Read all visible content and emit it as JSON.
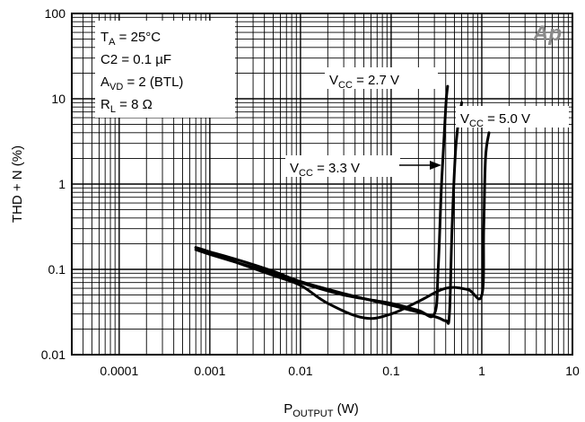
{
  "chart_data": {
    "type": "line",
    "xscale": "log",
    "yscale": "log",
    "xlim": [
      3e-05,
      10
    ],
    "ylim": [
      0.01,
      100
    ],
    "grid": true,
    "xlabel": {
      "main": "P",
      "sub": "OUTPUT",
      "unit": " (W)"
    },
    "ylabel": "THD + N (%)",
    "x_ticks": [
      "0.0001",
      "0.001",
      "0.01",
      "0.1",
      "1",
      "10"
    ],
    "y_ticks": [
      "0.01",
      "0.1",
      "1",
      "10",
      "100"
    ],
    "conditions": [
      {
        "main": "T",
        "sub": "A",
        "rest": " = 25°C"
      },
      {
        "main": "C2 = 0.1 µF",
        "sub": "",
        "rest": ""
      },
      {
        "main": "A",
        "sub": "VD",
        "rest": " = 2 (BTL)"
      },
      {
        "main": "R",
        "sub": "L",
        "rest": " = 8 Ω"
      }
    ],
    "series": [
      {
        "name": {
          "main": "V",
          "sub": "CC",
          "rest": " = 2.7 V"
        },
        "x": [
          0.0007,
          0.001,
          0.002,
          0.005,
          0.01,
          0.03,
          0.1,
          0.2,
          0.3,
          0.33,
          0.36,
          0.4,
          0.42
        ],
        "y": [
          0.17,
          0.15,
          0.12,
          0.09,
          0.07,
          0.05,
          0.04,
          0.033,
          0.03,
          0.1,
          1,
          8,
          14
        ]
      },
      {
        "name": {
          "main": "V",
          "sub": "CC",
          "rest": " = 3.3 V"
        },
        "x": [
          0.0007,
          0.001,
          0.002,
          0.005,
          0.01,
          0.03,
          0.1,
          0.3,
          0.4,
          0.44,
          0.47,
          0.52,
          0.6
        ],
        "y": [
          0.18,
          0.16,
          0.13,
          0.095,
          0.072,
          0.052,
          0.038,
          0.028,
          0.025,
          0.03,
          0.3,
          3,
          9
        ]
      },
      {
        "name": {
          "main": "V",
          "sub": "CC",
          "rest": " = 5.0 V"
        },
        "x": [
          0.0007,
          0.001,
          0.002,
          0.005,
          0.01,
          0.02,
          0.05,
          0.1,
          0.2,
          0.4,
          0.7,
          1.0,
          1.05,
          1.1,
          1.2
        ],
        "y": [
          0.18,
          0.16,
          0.12,
          0.085,
          0.065,
          0.04,
          0.027,
          0.03,
          0.042,
          0.06,
          0.058,
          0.05,
          0.3,
          2,
          4
        ]
      }
    ],
    "logo": "Ap"
  }
}
